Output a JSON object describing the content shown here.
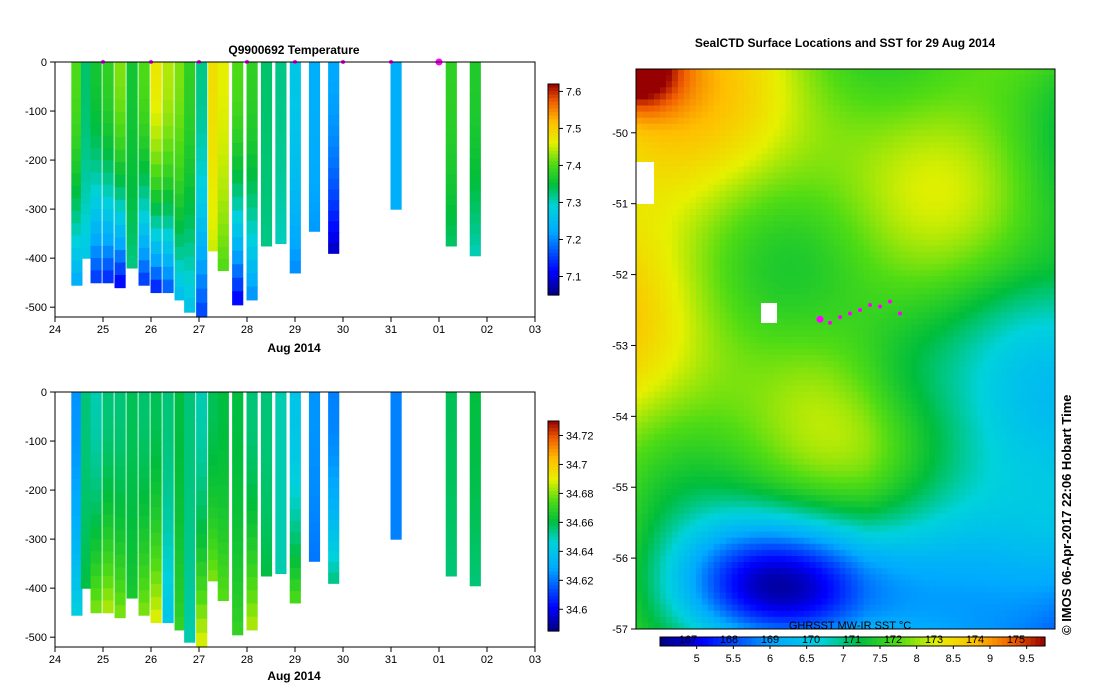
{
  "figure": {
    "credit": "© IMOS 06-Apr-2017 22:06 Hobart Time"
  },
  "chart_data": [
    {
      "type": "heatmap",
      "title": "Q9900692  Temperature",
      "xlabel": "Aug 2014",
      "ylabel": "",
      "x_ticks": [
        "24",
        "25",
        "26",
        "27",
        "28",
        "29",
        "30",
        "31",
        "01",
        "02",
        "03"
      ],
      "y_ticks": [
        "0",
        "-100",
        "-200",
        "-300",
        "-400",
        "-500"
      ],
      "ylim": [
        -520,
        0
      ],
      "xlim_days": [
        24,
        34
      ],
      "colorbar": {
        "min": 7.05,
        "max": 7.62,
        "ticks": [
          "7.6",
          "7.5",
          "7.4",
          "7.3",
          "7.2",
          "7.1"
        ]
      },
      "profiles": [
        {
          "day": 24.45,
          "depth": 455,
          "surface": 7.4,
          "bottom": 7.22
        },
        {
          "day": 24.65,
          "depth": 400,
          "surface": 7.33,
          "bottom": 7.27
        },
        {
          "day": 24.85,
          "depth": 450,
          "surface": 7.36,
          "bottom": 7.14
        },
        {
          "day": 25.1,
          "depth": 450,
          "surface": 7.38,
          "bottom": 7.13
        },
        {
          "day": 25.35,
          "depth": 460,
          "surface": 7.42,
          "bottom": 7.1
        },
        {
          "day": 25.6,
          "depth": 420,
          "surface": 7.36,
          "bottom": 7.32
        },
        {
          "day": 25.85,
          "depth": 455,
          "surface": 7.4,
          "bottom": 7.14
        },
        {
          "day": 26.1,
          "depth": 470,
          "surface": 7.47,
          "bottom": 7.12
        },
        {
          "day": 26.35,
          "depth": 470,
          "surface": 7.44,
          "bottom": 7.16
        },
        {
          "day": 26.6,
          "depth": 485,
          "surface": 7.42,
          "bottom": 7.25
        },
        {
          "day": 26.8,
          "depth": 510,
          "surface": 7.38,
          "bottom": 7.26
        },
        {
          "day": 27.05,
          "depth": 520,
          "surface": 7.32,
          "bottom": 7.15
        },
        {
          "day": 27.3,
          "depth": 385,
          "surface": 7.48,
          "bottom": 7.45
        },
        {
          "day": 27.5,
          "depth": 425,
          "surface": 7.46,
          "bottom": 7.4
        },
        {
          "day": 27.8,
          "depth": 495,
          "surface": 7.4,
          "bottom": 7.1
        },
        {
          "day": 28.1,
          "depth": 485,
          "surface": 7.38,
          "bottom": 7.2
        },
        {
          "day": 28.4,
          "depth": 375,
          "surface": 7.33,
          "bottom": 7.32
        },
        {
          "day": 28.7,
          "depth": 370,
          "surface": 7.32,
          "bottom": 7.3
        },
        {
          "day": 29.0,
          "depth": 430,
          "surface": 7.27,
          "bottom": 7.2
        },
        {
          "day": 29.4,
          "depth": 345,
          "surface": 7.23,
          "bottom": 7.21
        },
        {
          "day": 29.8,
          "depth": 390,
          "surface": 7.22,
          "bottom": 7.08
        },
        {
          "day": 31.1,
          "depth": 300,
          "surface": 7.23,
          "bottom": 7.23
        },
        {
          "day": 32.25,
          "depth": 375,
          "surface": 7.38,
          "bottom": 7.33
        },
        {
          "day": 32.75,
          "depth": 395,
          "surface": 7.37,
          "bottom": 7.3
        }
      ],
      "surface_markers": [
        25.0,
        26.0,
        27.0,
        28.0,
        29.0,
        30.0,
        31.0,
        32.0
      ]
    },
    {
      "type": "heatmap",
      "title": "",
      "xlabel": "Aug 2014",
      "ylabel": "",
      "x_ticks": [
        "24",
        "25",
        "26",
        "27",
        "28",
        "29",
        "30",
        "31",
        "01",
        "02",
        "03"
      ],
      "y_ticks": [
        "0",
        "-100",
        "-200",
        "-300",
        "-400",
        "-500"
      ],
      "ylim": [
        -520,
        0
      ],
      "xlim_days": [
        24,
        34
      ],
      "colorbar": {
        "min": 34.585,
        "max": 34.73,
        "ticks": [
          "34.72",
          "34.7",
          "34.68",
          "34.66",
          "34.64",
          "34.62",
          "34.6"
        ]
      },
      "profiles": [
        {
          "day": 24.45,
          "depth": 455,
          "surface": 34.625,
          "bottom": 34.645
        },
        {
          "day": 24.65,
          "depth": 400,
          "surface": 34.655,
          "bottom": 34.66
        },
        {
          "day": 24.85,
          "depth": 450,
          "surface": 34.65,
          "bottom": 34.68
        },
        {
          "day": 25.1,
          "depth": 450,
          "surface": 34.655,
          "bottom": 34.685
        },
        {
          "day": 25.35,
          "depth": 460,
          "surface": 34.655,
          "bottom": 34.68
        },
        {
          "day": 25.6,
          "depth": 420,
          "surface": 34.658,
          "bottom": 34.665
        },
        {
          "day": 25.85,
          "depth": 455,
          "surface": 34.656,
          "bottom": 34.68
        },
        {
          "day": 26.1,
          "depth": 470,
          "surface": 34.658,
          "bottom": 34.69
        },
        {
          "day": 26.35,
          "depth": 470,
          "surface": 34.655,
          "bottom": 34.64
        },
        {
          "day": 26.6,
          "depth": 485,
          "surface": 34.66,
          "bottom": 34.67
        },
        {
          "day": 26.8,
          "depth": 510,
          "surface": 34.655,
          "bottom": 34.65
        },
        {
          "day": 27.05,
          "depth": 520,
          "surface": 34.65,
          "bottom": 34.69
        },
        {
          "day": 27.3,
          "depth": 385,
          "surface": 34.658,
          "bottom": 34.68
        },
        {
          "day": 27.5,
          "depth": 425,
          "surface": 34.66,
          "bottom": 34.676
        },
        {
          "day": 27.8,
          "depth": 495,
          "surface": 34.66,
          "bottom": 34.67
        },
        {
          "day": 28.1,
          "depth": 485,
          "surface": 34.655,
          "bottom": 34.685
        },
        {
          "day": 28.4,
          "depth": 375,
          "surface": 34.655,
          "bottom": 34.66
        },
        {
          "day": 28.7,
          "depth": 370,
          "surface": 34.65,
          "bottom": 34.65
        },
        {
          "day": 29.0,
          "depth": 430,
          "surface": 34.64,
          "bottom": 34.675
        },
        {
          "day": 29.4,
          "depth": 345,
          "surface": 34.625,
          "bottom": 34.62
        },
        {
          "day": 29.8,
          "depth": 390,
          "surface": 34.622,
          "bottom": 34.655
        },
        {
          "day": 31.1,
          "depth": 300,
          "surface": 34.622,
          "bottom": 34.622
        },
        {
          "day": 32.25,
          "depth": 375,
          "surface": 34.658,
          "bottom": 34.655
        },
        {
          "day": 32.75,
          "depth": 395,
          "surface": 34.66,
          "bottom": 34.655
        }
      ]
    },
    {
      "type": "heatmap",
      "title": "SealCTD Surface Locations and SST for 29 Aug 2014",
      "xlabel": "",
      "ylabel": "",
      "y_ticks": [
        "-50",
        "-51",
        "-52",
        "-53",
        "-54",
        "-55",
        "-56",
        "-57"
      ],
      "ylim": [
        -57.0,
        -49.1
      ],
      "colorbar": {
        "label": "GHRSST MW-IR SST °C",
        "ticks": [
          "5",
          "5.5",
          "6",
          "6.5",
          "7",
          "7.5",
          "8",
          "8.5",
          "9",
          "9.5"
        ],
        "top_ticks": [
          "167",
          "168",
          "169",
          "170",
          "171",
          "172",
          "173",
          "174",
          "175"
        ],
        "min": 4.5,
        "max": 9.75
      },
      "track_points_lat": [
        -52.63,
        -52.68,
        -52.6,
        -52.55,
        -52.5,
        -52.43,
        -52.45,
        -52.38,
        -52.55
      ]
    }
  ],
  "colors": {
    "background": "#ffffff",
    "marker": "#ff00ff",
    "axis": "#000000"
  }
}
